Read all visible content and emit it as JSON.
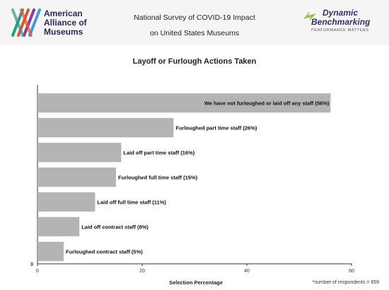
{
  "header": {
    "left_logo": {
      "icon": "aam-logo-icon",
      "lines": [
        "American",
        "Alliance of",
        "Museums"
      ],
      "colors": [
        "#2e9a8a",
        "#e2562a",
        "#8b3aa0",
        "#4a9ad4"
      ]
    },
    "title_lines": [
      "National Survey of COVID-19 Impact",
      "on United States Museums"
    ],
    "right_logo": {
      "icon": "db-swoosh-icon",
      "line1": "Dynamic",
      "line2": "Benchmarking",
      "tagline": "PERFORMANCE MATTERS"
    }
  },
  "chart_data": {
    "type": "bar",
    "orientation": "horizontal",
    "title": "Layoff or Furlough Actions Taken",
    "xlabel": "Selection Percentage",
    "ylabel": "",
    "xlim": [
      0,
      60
    ],
    "xticks": [
      "0",
      "20",
      "40",
      "60"
    ],
    "ytick": "0",
    "bar_color": "#b4b4b4",
    "grid": false,
    "categories": [
      "We have not furloughed or laid off any staff (56%)",
      "Furloughed part time staff (26%)",
      "Laid off part time staff (16%)",
      "Furloughed full time staff (15%)",
      "Laid off full time staff (11%)",
      "Laid off contract staff (8%)",
      "Furloughed contract staff (5%)"
    ],
    "values": [
      56,
      26,
      16,
      15,
      11,
      8,
      5
    ]
  },
  "footnote": "*number of respondents = 659"
}
